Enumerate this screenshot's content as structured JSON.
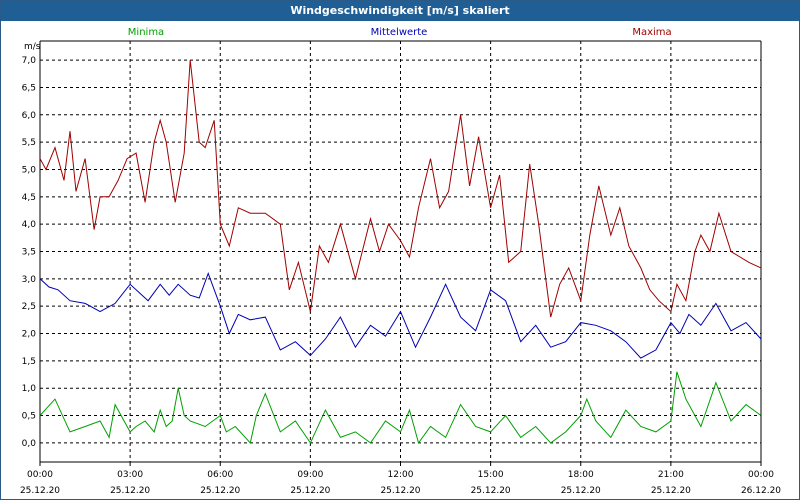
{
  "window": {
    "title": "Windgeschwindigkeit [m/s] skaliert"
  },
  "chart_data": {
    "type": "line",
    "title": "Windgeschwindigkeit [m/s] skaliert",
    "ylabel": "m/s",
    "xlabel": "",
    "ylim": [
      -0.35,
      7.35
    ],
    "grid": true,
    "legend": "top",
    "y_ticks": [
      "7,0",
      "6,5",
      "6,0",
      "5,5",
      "5,0",
      "4,5",
      "4,0",
      "3,5",
      "3,0",
      "2,5",
      "2,0",
      "1,5",
      "1,0",
      "0,5",
      "0,0"
    ],
    "y_tick_values": [
      7.0,
      6.5,
      6.0,
      5.5,
      5.0,
      4.5,
      4.0,
      3.5,
      3.0,
      2.5,
      2.0,
      1.5,
      1.0,
      0.5,
      0.0
    ],
    "x_ticks": [
      {
        "time": "00:00",
        "date": "25.12.20"
      },
      {
        "time": "03:00",
        "date": "25.12.20"
      },
      {
        "time": "06:00",
        "date": "25.12.20"
      },
      {
        "time": "09:00",
        "date": "25.12.20"
      },
      {
        "time": "12:00",
        "date": "25.12.20"
      },
      {
        "time": "15:00",
        "date": "25.12.20"
      },
      {
        "time": "18:00",
        "date": "25.12.20"
      },
      {
        "time": "21:00",
        "date": "25.12.20"
      },
      {
        "time": "00:00",
        "date": "26.12.20"
      }
    ],
    "x_range_hours": [
      0,
      24
    ],
    "series": [
      {
        "name": "Minima",
        "color": "#00a000",
        "x": [
          0,
          0.5,
          1,
          1.5,
          2,
          2.3,
          2.5,
          3,
          3.2,
          3.5,
          3.8,
          4,
          4.2,
          4.4,
          4.6,
          4.8,
          5,
          5.5,
          6,
          6.2,
          6.5,
          7,
          7.2,
          7.5,
          8,
          8.5,
          9,
          9.5,
          10,
          10.5,
          11,
          11.5,
          12,
          12.3,
          12.6,
          13,
          13.5,
          14,
          14.5,
          15,
          15.5,
          16,
          16.5,
          17,
          17.5,
          18,
          18.2,
          18.5,
          19,
          19.5,
          20,
          20.5,
          21,
          21.2,
          21.5,
          22,
          22.5,
          23,
          23.5,
          24
        ],
        "values": [
          0.5,
          0.8,
          0.2,
          0.3,
          0.4,
          0.1,
          0.7,
          0.2,
          0.3,
          0.4,
          0.2,
          0.6,
          0.3,
          0.4,
          1.0,
          0.5,
          0.4,
          0.3,
          0.5,
          0.2,
          0.3,
          0.0,
          0.5,
          0.9,
          0.2,
          0.4,
          0.0,
          0.6,
          0.1,
          0.2,
          0.0,
          0.4,
          0.2,
          0.6,
          0.0,
          0.3,
          0.1,
          0.7,
          0.3,
          0.2,
          0.5,
          0.1,
          0.3,
          0.0,
          0.2,
          0.5,
          0.8,
          0.4,
          0.1,
          0.6,
          0.3,
          0.2,
          0.4,
          1.3,
          0.8,
          0.3,
          1.1,
          0.4,
          0.7,
          0.5
        ]
      },
      {
        "name": "Mittelwerte",
        "color": "#0000b4",
        "x": [
          0,
          0.3,
          0.6,
          1,
          1.5,
          2,
          2.5,
          3,
          3.3,
          3.6,
          4,
          4.3,
          4.6,
          5,
          5.3,
          5.6,
          6,
          6.3,
          6.6,
          7,
          7.5,
          8,
          8.5,
          9,
          9.5,
          10,
          10.5,
          11,
          11.5,
          12,
          12.5,
          13,
          13.5,
          14,
          14.5,
          15,
          15.5,
          16,
          16.5,
          17,
          17.5,
          18,
          18.5,
          19,
          19.5,
          20,
          20.5,
          21,
          21.3,
          21.6,
          22,
          22.5,
          23,
          23.5,
          24
        ],
        "values": [
          3.0,
          2.85,
          2.8,
          2.6,
          2.55,
          2.4,
          2.55,
          2.9,
          2.75,
          2.6,
          2.9,
          2.7,
          2.9,
          2.7,
          2.65,
          3.1,
          2.5,
          2.0,
          2.35,
          2.25,
          2.3,
          1.7,
          1.85,
          1.6,
          1.9,
          2.3,
          1.75,
          2.15,
          1.95,
          2.4,
          1.75,
          2.3,
          2.9,
          2.3,
          2.05,
          2.8,
          2.6,
          1.85,
          2.15,
          1.75,
          1.85,
          2.2,
          2.15,
          2.05,
          1.85,
          1.55,
          1.7,
          2.2,
          2.0,
          2.35,
          2.15,
          2.55,
          2.05,
          2.2,
          1.9
        ]
      },
      {
        "name": "Maxima",
        "color": "#a00000",
        "x": [
          0,
          0.2,
          0.5,
          0.8,
          1,
          1.2,
          1.5,
          1.8,
          2,
          2.3,
          2.6,
          2.9,
          3.2,
          3.5,
          3.8,
          4,
          4.2,
          4.5,
          4.8,
          5,
          5.3,
          5.5,
          5.8,
          6,
          6.3,
          6.6,
          7,
          7.5,
          8,
          8.3,
          8.6,
          9,
          9.3,
          9.6,
          10,
          10.5,
          11,
          11.3,
          11.6,
          12,
          12.3,
          12.6,
          13,
          13.3,
          13.6,
          14,
          14.3,
          14.6,
          15,
          15.3,
          15.6,
          16,
          16.3,
          16.6,
          17,
          17.3,
          17.6,
          18,
          18.3,
          18.6,
          19,
          19.3,
          19.6,
          20,
          20.3,
          20.6,
          21,
          21.2,
          21.5,
          21.8,
          22,
          22.3,
          22.6,
          23,
          23.3,
          23.6,
          24
        ],
        "values": [
          5.2,
          5.0,
          5.4,
          4.8,
          5.7,
          4.6,
          5.2,
          3.9,
          4.5,
          4.5,
          4.8,
          5.2,
          5.3,
          4.4,
          5.5,
          5.9,
          5.5,
          4.4,
          5.3,
          7.0,
          5.5,
          5.4,
          5.9,
          4.0,
          3.6,
          4.3,
          4.2,
          4.2,
          4.0,
          2.8,
          3.3,
          2.4,
          3.6,
          3.3,
          4.0,
          3.0,
          4.1,
          3.5,
          4.0,
          3.7,
          3.4,
          4.3,
          5.2,
          4.3,
          4.6,
          6.0,
          4.7,
          5.6,
          4.3,
          4.9,
          3.3,
          3.5,
          5.1,
          4.0,
          2.3,
          2.9,
          3.2,
          2.6,
          3.8,
          4.7,
          3.8,
          4.3,
          3.6,
          3.2,
          2.8,
          2.6,
          2.4,
          2.9,
          2.6,
          3.5,
          3.8,
          3.5,
          4.2,
          3.5,
          3.4,
          3.3,
          3.2
        ]
      }
    ]
  }
}
